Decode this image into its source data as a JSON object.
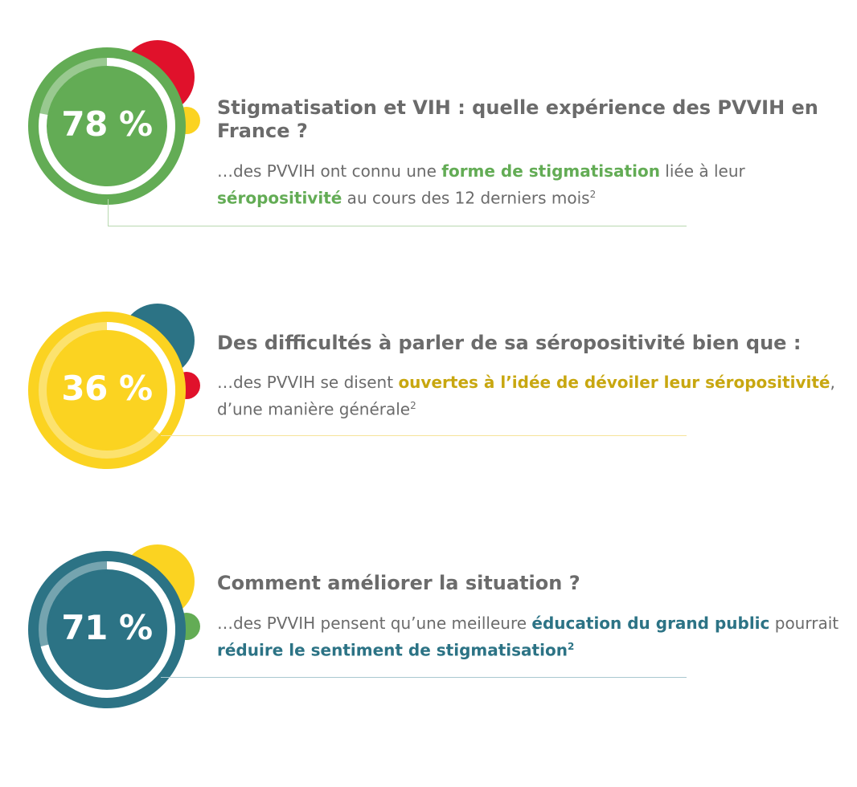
{
  "colors": {
    "green": "#63ac55",
    "yellow": "#fbd321",
    "teal": "#2c7385",
    "red": "#e0112b",
    "text_gray": "#6b6b6b"
  },
  "stats": [
    {
      "percent_label": "78 %",
      "percent_value": 78,
      "title": "Stigmatisation et VIH : quelle expérience des PVVIH en France ?",
      "desc": {
        "t1": "…des PVVIH ont connu une ",
        "h1": "forme de stigmatisation",
        "t2": " liée à leur ",
        "h2": "séropositivité",
        "t3": " au cours des 12 derniers mois",
        "sup": "2"
      }
    },
    {
      "percent_label": "36 %",
      "percent_value": 36,
      "title": "Des difficultés à parler de sa séropositivité bien que :",
      "desc": {
        "t1": "…des PVVIH se disent ",
        "h1": "ouvertes à l’idée de dévoiler leur séropositivité",
        "t2": ", d’une manière générale",
        "sup": "2"
      }
    },
    {
      "percent_label": "71 %",
      "percent_value": 71,
      "title": "Comment améliorer la situation ?",
      "desc": {
        "t1": "…des PVVIH pensent qu’une meilleure ",
        "h1": "éducation du grand public",
        "t2": " pourrait ",
        "h2": "réduire le sentiment de stigmatisation",
        "sup": "2"
      }
    }
  ]
}
